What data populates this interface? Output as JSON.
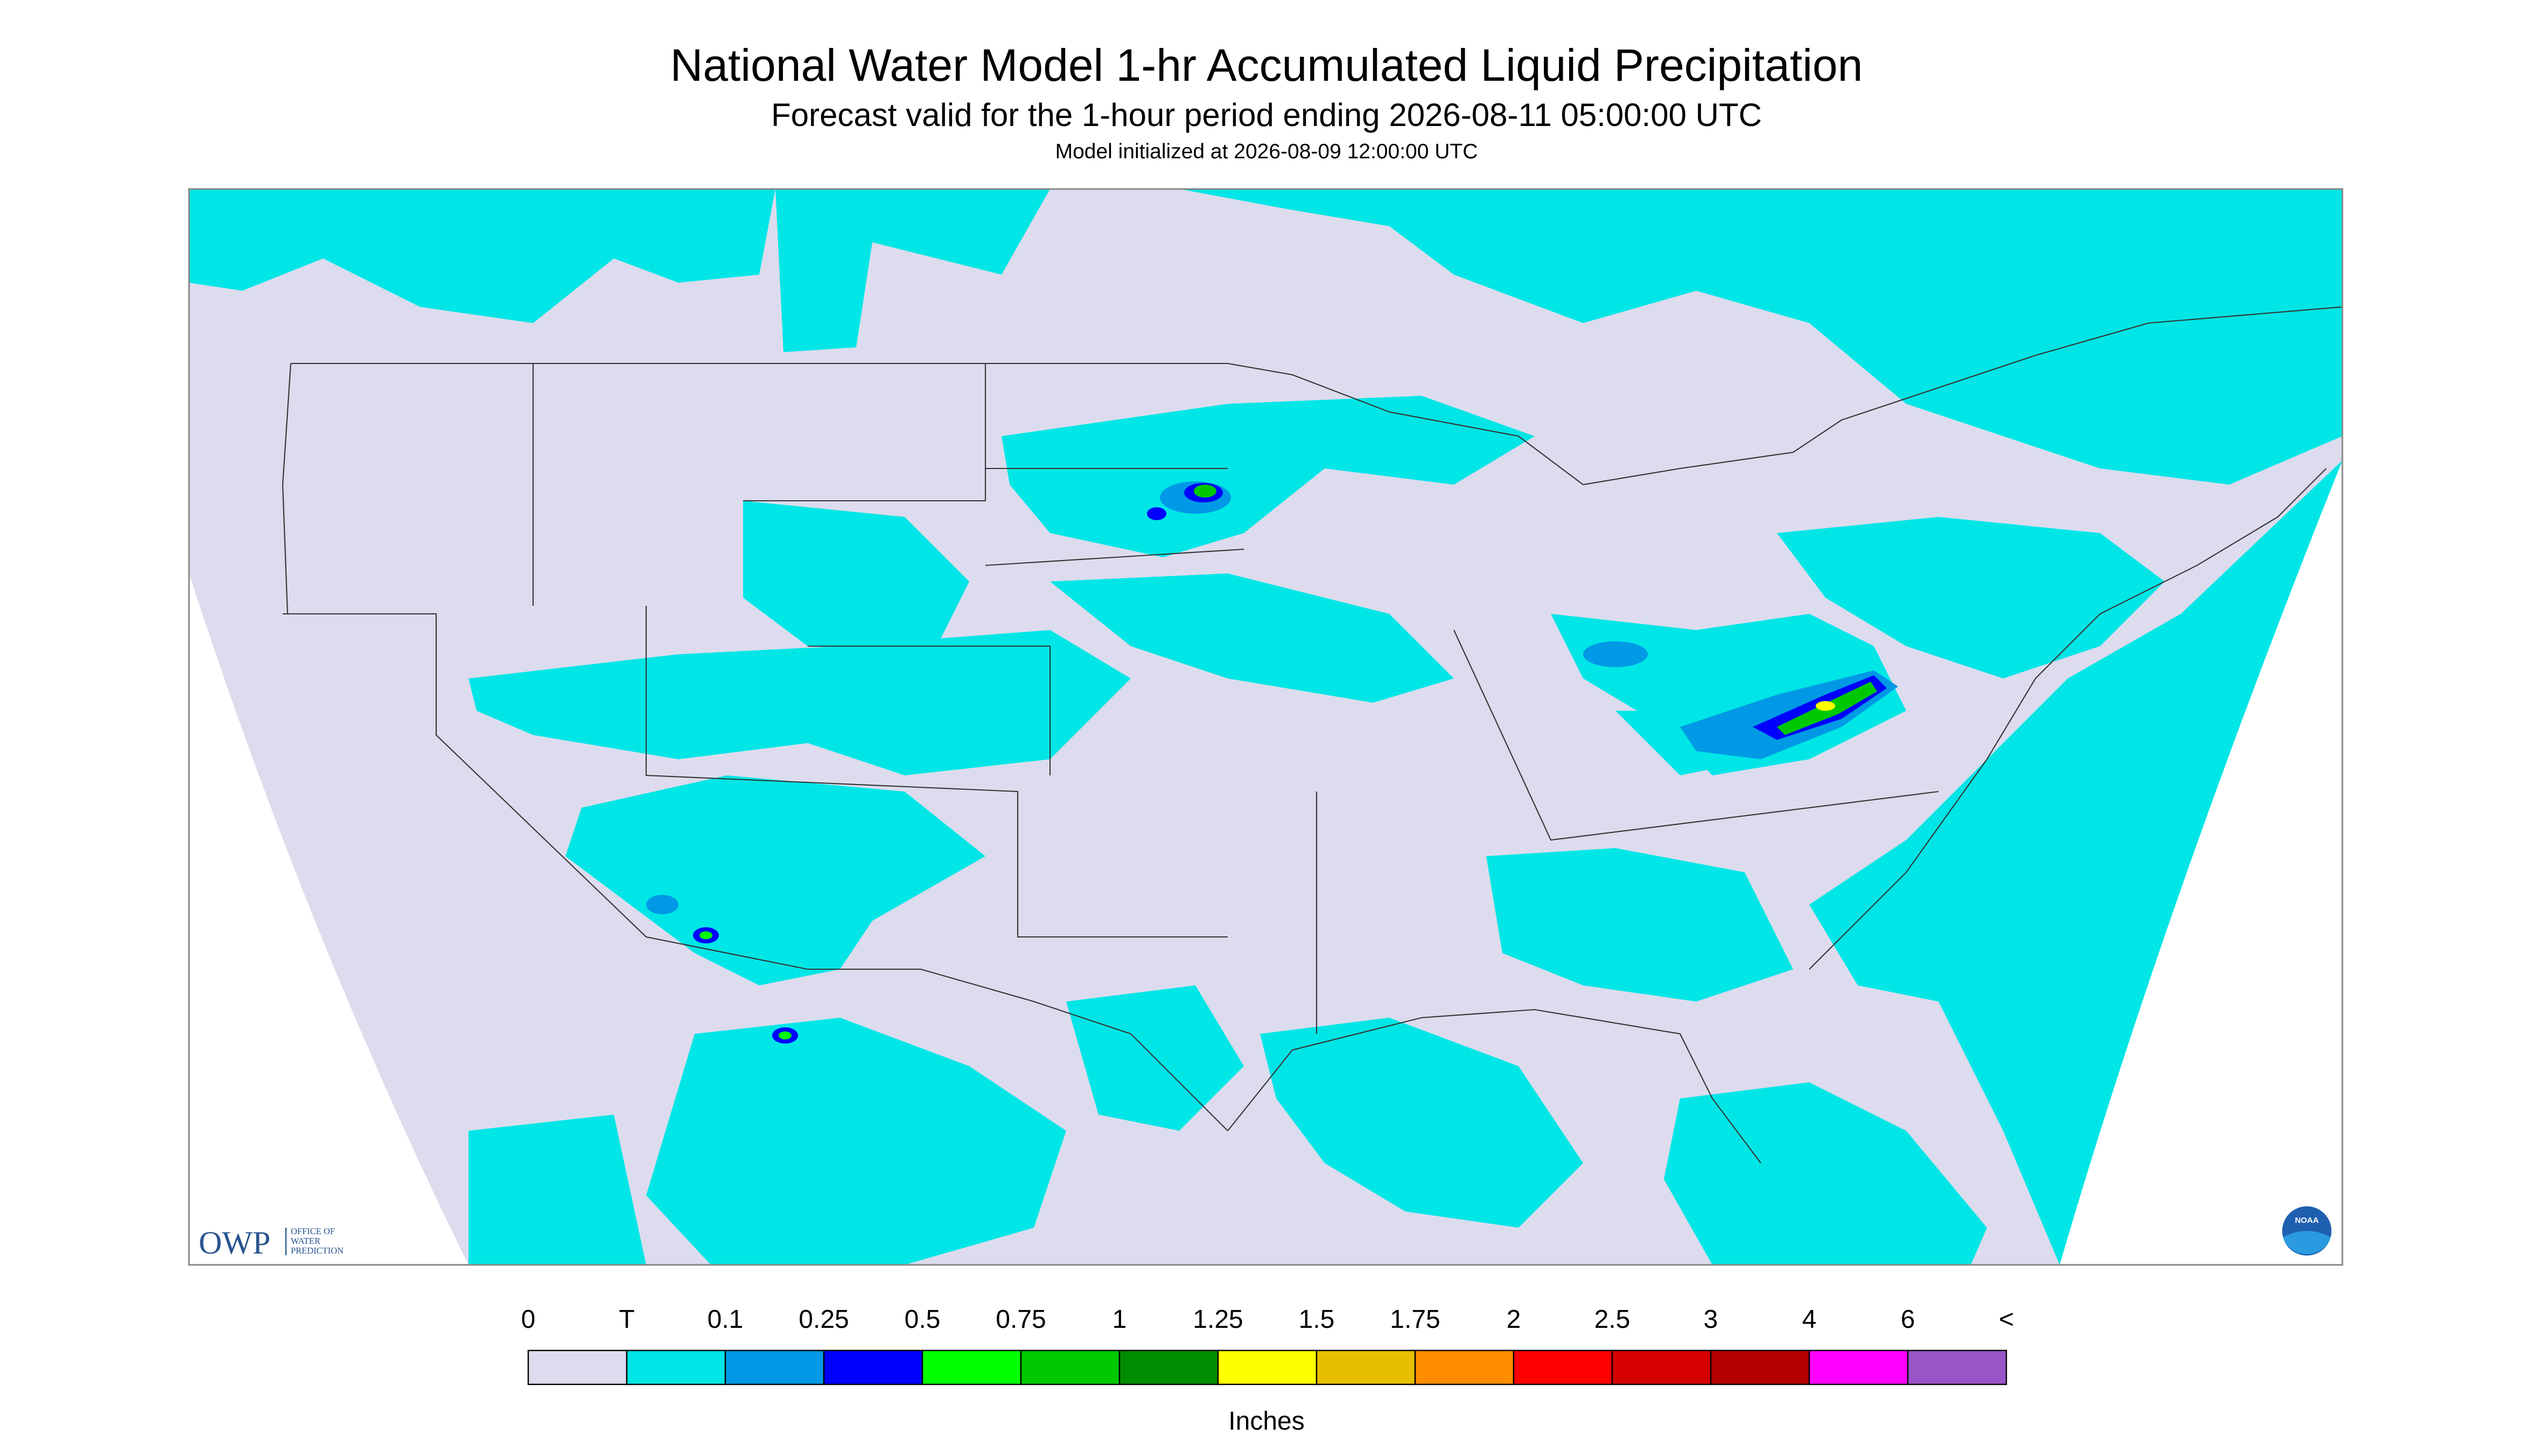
{
  "header": {
    "title": "National Water Model 1-hr Accumulated Liquid Precipitation",
    "subtitle": "Forecast valid for the 1-hour period ending 2026-08-11 05:00:00 UTC",
    "init": "Model initialized at 2026-08-09 12:00:00 UTC"
  },
  "logos": {
    "owp": "OWP",
    "owp_lines": [
      "OFFICE OF",
      "WATER",
      "PREDICTION"
    ],
    "noaa": "NOAA"
  },
  "legend": {
    "labels": [
      "0",
      "T",
      "0.1",
      "0.25",
      "0.5",
      "0.75",
      "1",
      "1.25",
      "1.5",
      "1.75",
      "2",
      "2.5",
      "3",
      "4",
      "6",
      "<"
    ],
    "colors": [
      "#dcdcee",
      "#00e6e6",
      "#0099e6",
      "#0000ff",
      "#00ff00",
      "#00c800",
      "#008c00",
      "#ffff00",
      "#e6c000",
      "#ff8c00",
      "#ff0000",
      "#d70000",
      "#b40000",
      "#ff00ff",
      "#9955c8"
    ],
    "unit": "Inches"
  }
}
